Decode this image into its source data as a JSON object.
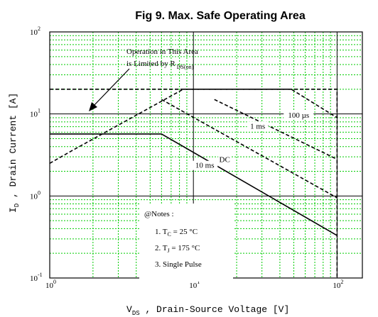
{
  "chart_data": {
    "type": "line",
    "title": "Fig 9.  Max. Safe Operating Area",
    "xlabel": {
      "main": "V",
      "sub": "DS",
      "rest": " , Drain-Source Voltage  [V]"
    },
    "ylabel": {
      "main": "I",
      "sub": "D",
      "rest": " , Drain Current  [A]"
    },
    "xscale": "log",
    "yscale": "log",
    "xlim": [
      1,
      150
    ],
    "ylim": [
      0.1,
      100
    ],
    "grid": true,
    "x_ticks": [
      {
        "value": 1,
        "base": "10",
        "exp": "0"
      },
      {
        "value": 10,
        "base": "10",
        "exp": "1"
      },
      {
        "value": 100,
        "base": "10",
        "exp": "2"
      }
    ],
    "y_ticks": [
      {
        "value": 0.1,
        "base": "10",
        "exp": "-1"
      },
      {
        "value": 1,
        "base": "10",
        "exp": "0"
      },
      {
        "value": 10,
        "base": "10",
        "exp": "1"
      },
      {
        "value": 100,
        "base": "10",
        "exp": "2"
      }
    ],
    "series": [
      {
        "name": "100 µs",
        "style": "dashed",
        "x": [
          1,
          1.4,
          8.5,
          48,
          100
        ],
        "y": [
          2.5,
          3.5,
          20,
          20,
          9
        ]
      },
      {
        "name": "1 ms",
        "style": "dashed",
        "x": [
          14,
          100
        ],
        "y": [
          15,
          2.8
        ]
      },
      {
        "name": "10 ms",
        "style": "dashed",
        "x": [
          6,
          100
        ],
        "y": [
          15,
          0.95
        ]
      },
      {
        "name": "DC",
        "style": "solid",
        "x": [
          1,
          6,
          100
        ],
        "y": [
          5.7,
          5.7,
          0.33
        ]
      },
      {
        "name": "",
        "style": "dashed",
        "x": [
          1,
          100,
          100
        ],
        "y": [
          20,
          20,
          0.1
        ]
      }
    ],
    "labels": [
      {
        "text": "100 µs",
        "x": 54,
        "y": 9
      },
      {
        "text": "1 ms",
        "x": 28,
        "y": 6.6
      },
      {
        "text": "10 ms",
        "x": 12,
        "y": 2.2
      },
      {
        "text": "DC",
        "x": 16.5,
        "y": 2.6
      }
    ],
    "annotation": {
      "line1": "Operation in This Area",
      "line2_main": "is Limited by R",
      "line2_sub": "DS(on)"
    },
    "notes": {
      "heading": "@Notes :",
      "item1_main": "1. T",
      "item1_sub": "C",
      "item1_rest": " = 25 °C",
      "item2_main": "2. T",
      "item2_sub": "J",
      "item2_rest": " = 175 °C",
      "item3": "3. Single Pulse"
    },
    "colors": {
      "grid_minor": "#00cc00",
      "grid_major": "#000000",
      "line": "#000000"
    }
  }
}
